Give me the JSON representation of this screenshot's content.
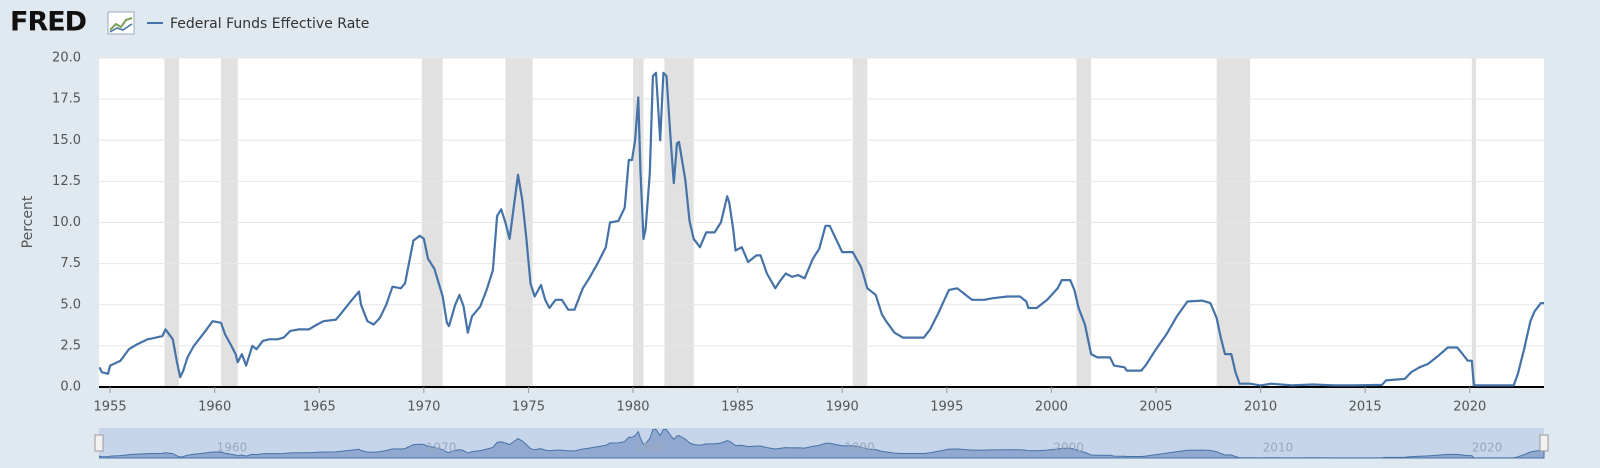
{
  "logo": "FRED",
  "chart_data": {
    "type": "line",
    "y_label": "Percent",
    "series": [
      {
        "name": "Federal Funds Effective Rate",
        "color": "#4572a7",
        "x": [
          1954.5,
          1954.6,
          1954.9,
          1955.0,
          1955.5,
          1955.9,
          1956.3,
          1956.8,
          1957.2,
          1957.5,
          1957.65,
          1958.0,
          1958.2,
          1958.35,
          1958.5,
          1958.7,
          1959.0,
          1959.5,
          1959.9,
          1960.3,
          1960.5,
          1960.8,
          1961.0,
          1961.1,
          1961.3,
          1961.5,
          1961.8,
          1962.0,
          1962.3,
          1962.6,
          1963.0,
          1963.3,
          1963.6,
          1964.0,
          1964.5,
          1964.9,
          1965.2,
          1965.8,
          1966.0,
          1966.5,
          1966.9,
          1967.0,
          1967.3,
          1967.6,
          1967.9,
          1968.2,
          1968.5,
          1968.9,
          1969.1,
          1969.5,
          1969.8,
          1970.0,
          1970.2,
          1970.5,
          1970.9,
          1971.1,
          1971.2,
          1971.5,
          1971.7,
          1971.9,
          1972.1,
          1972.3,
          1972.7,
          1973.0,
          1973.3,
          1973.5,
          1973.7,
          1973.9,
          1974.1,
          1974.5,
          1974.7,
          1974.9,
          1975.1,
          1975.3,
          1975.6,
          1975.8,
          1976.0,
          1976.3,
          1976.6,
          1976.9,
          1977.2,
          1977.6,
          1977.9,
          1978.3,
          1978.7,
          1978.9,
          1979.3,
          1979.6,
          1979.8,
          1979.95,
          1980.1,
          1980.25,
          1980.35,
          1980.5,
          1980.6,
          1980.8,
          1980.95,
          1981.1,
          1981.3,
          1981.45,
          1981.6,
          1981.8,
          1981.95,
          1982.1,
          1982.2,
          1982.5,
          1982.7,
          1982.9,
          1983.2,
          1983.5,
          1983.9,
          1984.2,
          1984.5,
          1984.6,
          1984.8,
          1984.9,
          1985.2,
          1985.5,
          1985.9,
          1986.1,
          1986.4,
          1986.8,
          1987.0,
          1987.3,
          1987.6,
          1987.9,
          1988.2,
          1988.6,
          1988.9,
          1989.2,
          1989.4,
          1989.7,
          1990.0,
          1990.5,
          1990.9,
          1991.0,
          1991.2,
          1991.6,
          1991.9,
          1992.1,
          1992.5,
          1992.9,
          1993.5,
          1993.9,
          1994.2,
          1994.6,
          1995.1,
          1995.5,
          1995.9,
          1996.2,
          1996.8,
          1997.2,
          1997.9,
          1998.5,
          1998.8,
          1998.9,
          1999.3,
          1999.8,
          2000.3,
          2000.5,
          2000.9,
          2001.1,
          2001.3,
          2001.6,
          2001.9,
          2002.2,
          2002.8,
          2003.0,
          2003.5,
          2003.6,
          2004.3,
          2004.5,
          2005.0,
          2005.5,
          2006.0,
          2006.5,
          2007.2,
          2007.6,
          2007.9,
          2008.1,
          2008.3,
          2008.6,
          2008.8,
          2009.0,
          2009.5,
          2010.0,
          2010.5,
          2011.5,
          2012.5,
          2013.5,
          2014.5,
          2015.8,
          2016.0,
          2016.9,
          2017.2,
          2017.6,
          2018.0,
          2018.5,
          2018.95,
          2019.4,
          2019.6,
          2019.9,
          2020.1,
          2020.2,
          2021.0,
          2022.1,
          2022.3,
          2022.6,
          2022.9,
          2023.1,
          2023.4,
          2023.55
        ],
        "values": [
          1.2,
          0.9,
          0.8,
          1.3,
          1.6,
          2.3,
          2.6,
          2.9,
          3.0,
          3.1,
          3.5,
          2.9,
          1.5,
          0.6,
          1.0,
          1.8,
          2.5,
          3.3,
          4.0,
          3.9,
          3.2,
          2.5,
          2.0,
          1.5,
          2.0,
          1.3,
          2.5,
          2.3,
          2.8,
          2.9,
          2.9,
          3.0,
          3.4,
          3.5,
          3.5,
          3.8,
          4.0,
          4.1,
          4.4,
          5.2,
          5.8,
          5.0,
          4.0,
          3.8,
          4.2,
          5.0,
          6.1,
          6.0,
          6.3,
          8.9,
          9.2,
          9.0,
          7.8,
          7.2,
          5.5,
          3.9,
          3.7,
          5.0,
          5.6,
          4.9,
          3.3,
          4.3,
          4.9,
          5.9,
          7.1,
          10.4,
          10.8,
          10.0,
          9.0,
          12.9,
          11.4,
          9.0,
          6.3,
          5.5,
          6.2,
          5.3,
          4.8,
          5.3,
          5.3,
          4.7,
          4.7,
          6.0,
          6.6,
          7.5,
          8.5,
          10.0,
          10.1,
          10.9,
          13.8,
          13.8,
          15.0,
          17.6,
          13.2,
          9.0,
          9.6,
          13.0,
          18.9,
          19.1,
          15.0,
          19.1,
          18.9,
          15.0,
          12.4,
          14.8,
          14.9,
          12.6,
          10.1,
          9.0,
          8.5,
          9.4,
          9.4,
          10.0,
          11.6,
          11.2,
          9.5,
          8.3,
          8.5,
          7.6,
          8.0,
          8.0,
          6.9,
          6.0,
          6.4,
          6.9,
          6.7,
          6.8,
          6.6,
          7.8,
          8.4,
          9.8,
          9.8,
          9.0,
          8.2,
          8.2,
          7.3,
          6.9,
          6.0,
          5.6,
          4.4,
          4.0,
          3.3,
          3.0,
          3.0,
          3.0,
          3.5,
          4.5,
          5.9,
          6.0,
          5.6,
          5.3,
          5.3,
          5.4,
          5.5,
          5.5,
          5.2,
          4.8,
          4.8,
          5.3,
          6.0,
          6.5,
          6.5,
          5.9,
          4.8,
          3.8,
          2.0,
          1.8,
          1.8,
          1.3,
          1.2,
          1.0,
          1.0,
          1.3,
          2.3,
          3.2,
          4.3,
          5.2,
          5.25,
          5.1,
          4.2,
          3.0,
          2.0,
          2.0,
          0.9,
          0.2,
          0.2,
          0.1,
          0.2,
          0.1,
          0.15,
          0.1,
          0.1,
          0.13,
          0.4,
          0.5,
          0.9,
          1.2,
          1.4,
          1.9,
          2.4,
          2.4,
          2.1,
          1.6,
          1.6,
          0.1,
          0.1,
          0.1,
          0.8,
          2.3,
          4.0,
          4.6,
          5.1,
          5.1
        ]
      }
    ],
    "recessions": [
      [
        1957.6,
        1958.3
      ],
      [
        1960.3,
        1961.1
      ],
      [
        1969.9,
        1970.9
      ],
      [
        1973.9,
        1975.2
      ],
      [
        1980.0,
        1980.5
      ],
      [
        1981.5,
        1982.9
      ],
      [
        1990.5,
        1991.2
      ],
      [
        2001.2,
        2001.9
      ],
      [
        2007.9,
        2009.5
      ],
      [
        2020.1,
        2020.3
      ]
    ],
    "xlim": [
      1954.47,
      2023.55
    ],
    "xticks": [
      1955,
      1960,
      1965,
      1970,
      1975,
      1980,
      1985,
      1990,
      1995,
      2000,
      2005,
      2010,
      2015,
      2020
    ],
    "ylim": [
      0,
      20
    ],
    "yticks": [
      {
        "value": 0,
        "label": "0.0"
      },
      2.5,
      {
        "value": 5,
        "label": "5.0"
      },
      7.5,
      {
        "value": 10,
        "label": "10.0"
      },
      12.5,
      {
        "value": 15,
        "label": "15.0"
      },
      17.5,
      {
        "value": 20,
        "label": "20.0"
      }
    ],
    "grid": true,
    "navigator_ticks": [
      1960,
      1970,
      1980,
      1990,
      2000,
      2010,
      2020
    ]
  }
}
